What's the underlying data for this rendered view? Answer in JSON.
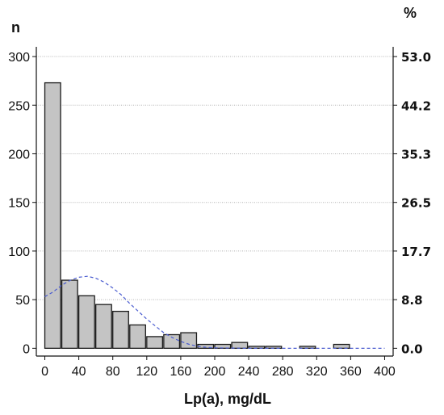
{
  "chart_data": {
    "type": "bar",
    "xlabel": "Lp(a), mg/dL",
    "ylabel_left": "n",
    "ylabel_right": "%",
    "x_ticks": [
      "0",
      "40",
      "80",
      "120",
      "160",
      "200",
      "240",
      "280",
      "320",
      "360",
      "400"
    ],
    "y_ticks_left": [
      "0",
      "50",
      "100",
      "150",
      "200",
      "250",
      "300"
    ],
    "y_ticks_right": [
      "0.0",
      "8.8",
      "17.7",
      "26.5",
      "35.3",
      "44.2",
      "53.0"
    ],
    "xlim": [
      -10,
      410
    ],
    "ylim": [
      -8,
      310
    ],
    "bin_width": 20,
    "bars": [
      {
        "x0": 0,
        "value": 273
      },
      {
        "x0": 20,
        "value": 70
      },
      {
        "x0": 40,
        "value": 54
      },
      {
        "x0": 60,
        "value": 45
      },
      {
        "x0": 80,
        "value": 38
      },
      {
        "x0": 100,
        "value": 24
      },
      {
        "x0": 120,
        "value": 12
      },
      {
        "x0": 140,
        "value": 14
      },
      {
        "x0": 160,
        "value": 16
      },
      {
        "x0": 180,
        "value": 4
      },
      {
        "x0": 200,
        "value": 4
      },
      {
        "x0": 220,
        "value": 6
      },
      {
        "x0": 240,
        "value": 2
      },
      {
        "x0": 260,
        "value": 2
      },
      {
        "x0": 300,
        "value": 2
      },
      {
        "x0": 340,
        "value": 4
      }
    ],
    "normal_curve": {
      "description_points": [
        [
          0,
          53
        ],
        [
          10,
          58
        ],
        [
          20,
          65
        ],
        [
          30,
          70
        ],
        [
          40,
          73
        ],
        [
          50,
          74
        ],
        [
          60,
          72
        ],
        [
          70,
          68
        ],
        [
          80,
          62
        ],
        [
          90,
          55
        ],
        [
          100,
          46
        ],
        [
          110,
          38
        ],
        [
          120,
          30
        ],
        [
          130,
          23
        ],
        [
          140,
          16
        ],
        [
          150,
          11
        ],
        [
          160,
          7
        ],
        [
          170,
          4
        ],
        [
          180,
          2
        ],
        [
          190,
          1
        ],
        [
          200,
          0.5
        ],
        [
          220,
          0.2
        ],
        [
          240,
          0
        ],
        [
          400,
          0
        ]
      ]
    },
    "grid": true,
    "colors": {
      "bar_fill": "#c4c4c4",
      "bar_stroke": "#1a1a1a",
      "curve": "#4a5cd0",
      "grid": "#b5b5b5"
    }
  }
}
